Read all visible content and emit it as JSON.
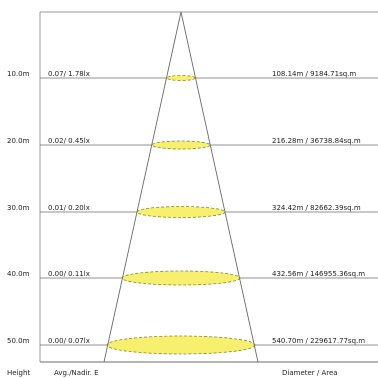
{
  "levels": [
    {
      "height": "10.0m",
      "illuminance": "0.07/ 1.78lx",
      "diameter_area": "108.14m / 9184.71sq.m"
    },
    {
      "height": "20.0m",
      "illuminance": "0.02/ 0.45lx",
      "diameter_area": "216.28m / 36738.84sq.m"
    },
    {
      "height": "30.0m",
      "illuminance": "0.01/ 0.20lx",
      "diameter_area": "324.42m / 82662.39sq.m"
    },
    {
      "height": "40.0m",
      "illuminance": "0.00/ 0.11lx",
      "diameter_area": "432.56m / 146955.36sq.m"
    },
    {
      "height": "50.0m",
      "illuminance": "0.00/ 0.07lx",
      "diameter_area": "540.70m / 229617.77sq.m"
    }
  ],
  "footer": {
    "height_label": "Height",
    "illuminance_label": "Avg./Nadir. E",
    "diameter_label": "Diameter / Area"
  },
  "colors": {
    "spot_fill": "#f7f06e",
    "spot_stroke": "#8a8530",
    "line": "#6b6b6b",
    "frame": "#9a9a9a"
  }
}
